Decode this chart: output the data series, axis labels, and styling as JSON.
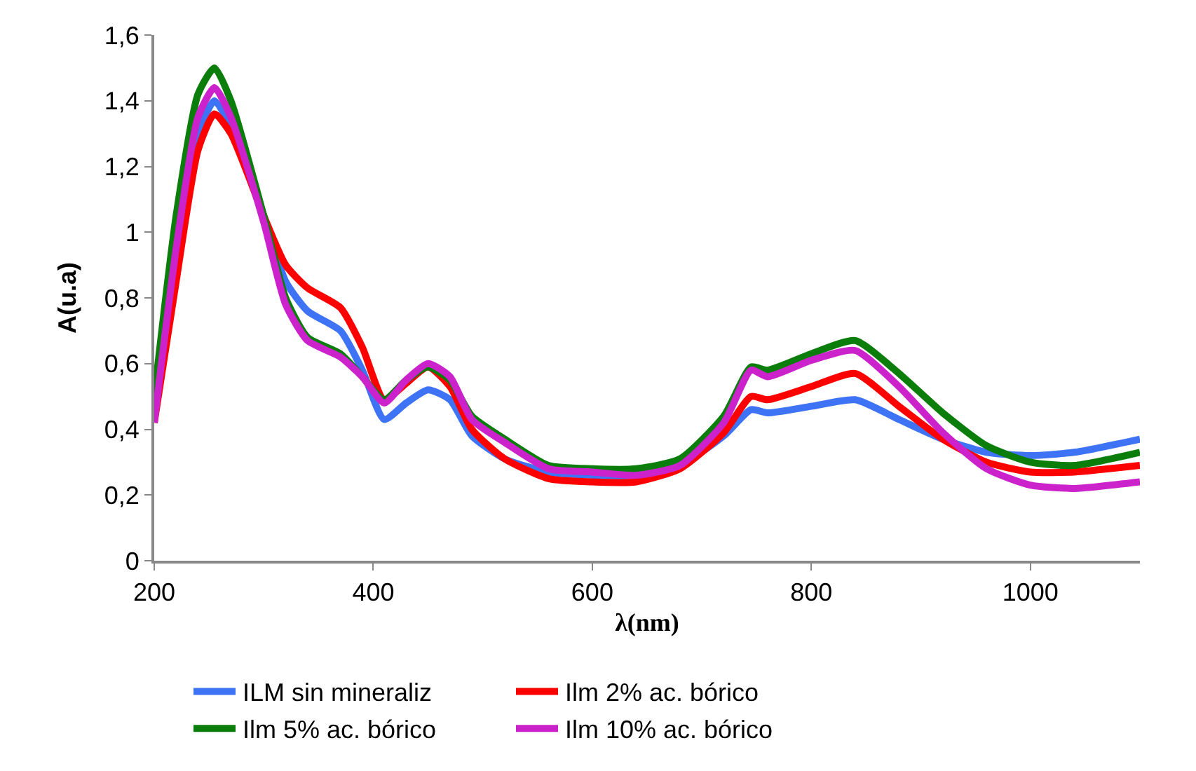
{
  "chart_data": {
    "type": "line",
    "xlabel": "λ(nm)",
    "ylabel": "A(u.a)",
    "x": [
      200,
      220,
      240,
      255,
      270,
      300,
      320,
      340,
      370,
      390,
      410,
      430,
      450,
      470,
      490,
      520,
      560,
      600,
      640,
      680,
      720,
      745,
      760,
      800,
      840,
      880,
      920,
      960,
      1000,
      1040,
      1100
    ],
    "series": [
      {
        "name": "ILM sin mineraliz",
        "color": "#3f73f5",
        "values": [
          null,
          0.95,
          1.3,
          1.4,
          1.32,
          1.05,
          0.85,
          0.76,
          0.7,
          0.58,
          0.43,
          0.48,
          0.52,
          0.49,
          0.38,
          0.31,
          0.27,
          0.26,
          0.26,
          0.29,
          0.38,
          0.46,
          0.45,
          0.47,
          0.49,
          0.43,
          0.37,
          0.33,
          0.32,
          0.33,
          0.37
        ]
      },
      {
        "name": "Ilm 2% ac. bórico",
        "color": "#ff0000",
        "values": [
          0.42,
          0.85,
          1.25,
          1.36,
          1.3,
          1.05,
          0.9,
          0.83,
          0.77,
          0.65,
          0.49,
          0.54,
          0.59,
          0.53,
          0.4,
          0.31,
          0.25,
          0.24,
          0.24,
          0.28,
          0.39,
          0.5,
          0.49,
          0.53,
          0.57,
          0.47,
          0.37,
          0.3,
          0.27,
          0.27,
          0.29
        ]
      },
      {
        "name": "Ilm 5% ac. bórico",
        "color": "#0a7d0a",
        "values": [
          0.5,
          1.05,
          1.42,
          1.5,
          1.4,
          1.05,
          0.8,
          0.68,
          0.63,
          0.56,
          0.49,
          0.55,
          0.59,
          0.55,
          0.44,
          0.37,
          0.29,
          0.28,
          0.28,
          0.31,
          0.44,
          0.59,
          0.58,
          0.63,
          0.67,
          0.57,
          0.45,
          0.35,
          0.3,
          0.29,
          0.33
        ]
      },
      {
        "name": "Ilm 10% ac. bórico",
        "color": "#cc22cc",
        "values": [
          0.42,
          0.95,
          1.35,
          1.44,
          1.35,
          1.03,
          0.78,
          0.67,
          0.62,
          0.56,
          0.48,
          0.55,
          0.6,
          0.56,
          0.43,
          0.36,
          0.28,
          0.27,
          0.26,
          0.29,
          0.42,
          0.58,
          0.56,
          0.61,
          0.64,
          0.53,
          0.39,
          0.28,
          0.23,
          0.22,
          0.24
        ]
      }
    ],
    "xlim": [
      200,
      1100
    ],
    "xticks": [
      200,
      400,
      600,
      800,
      1000
    ],
    "ylim": [
      0,
      1.6
    ],
    "yticks": [
      0,
      {
        "value": 0.2,
        "label": "0,2"
      },
      {
        "value": 0.4,
        "label": "0,4"
      },
      {
        "value": 0.6,
        "label": "0,6"
      },
      {
        "value": 0.8,
        "label": "0,8"
      },
      1,
      {
        "value": 1.2,
        "label": "1,2"
      },
      {
        "value": 1.4,
        "label": "1,4"
      },
      {
        "value": 1.6,
        "label": "1,6"
      }
    ],
    "grid": false,
    "legend": "bottom",
    "marker": "none",
    "line_style": "solid"
  }
}
